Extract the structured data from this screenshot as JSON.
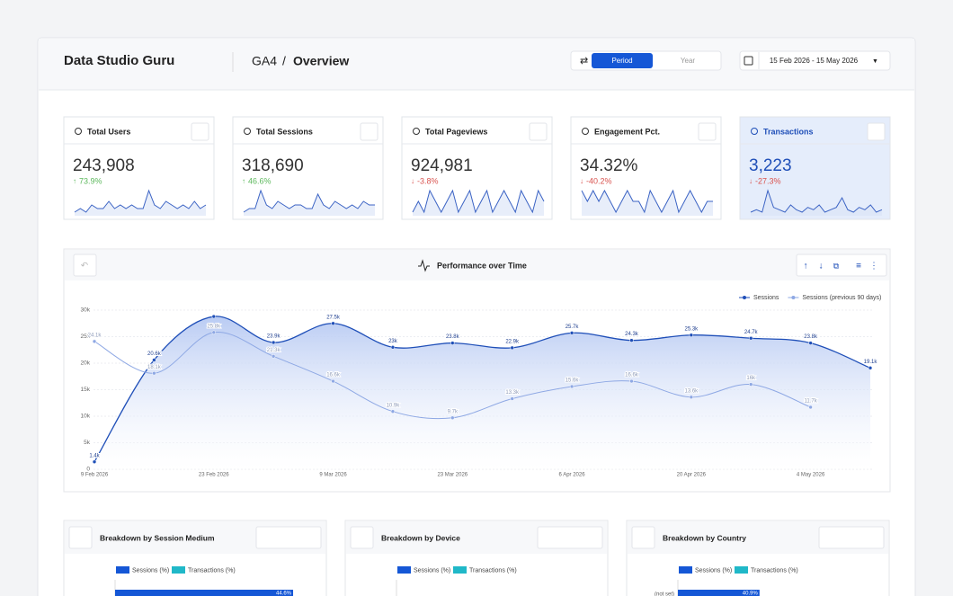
{
  "header": {
    "brand": "Data Studio Guru",
    "breadcrumb": [
      "GA4",
      "/",
      "Overview"
    ],
    "toggle": [
      "Period",
      "Year"
    ],
    "date_range": "15 Feb 2026 - 15 May 2026"
  },
  "kpis": [
    {
      "title": "Total Users",
      "value": "243,908",
      "change": "73.9%",
      "trend": [
        3,
        4,
        3,
        5,
        4,
        4,
        6,
        4,
        5,
        4,
        5,
        4,
        4,
        9,
        5,
        4,
        6,
        5,
        4,
        5,
        4,
        6,
        4,
        5
      ]
    },
    {
      "title": "Total Sessions",
      "value": "318,690",
      "change": "46.6%",
      "trend": [
        3,
        4,
        4,
        9,
        5,
        4,
        6,
        5,
        4,
        5,
        5,
        4,
        4,
        8,
        5,
        4,
        6,
        5,
        4,
        5,
        4,
        6,
        5,
        5
      ]
    },
    {
      "title": "Total Pageviews",
      "value": "924,981",
      "change": "-3.8%",
      "trend": [
        4,
        5,
        4,
        6,
        5,
        4,
        5,
        6,
        4,
        5,
        6,
        4,
        5,
        6,
        4,
        5,
        6,
        5,
        4,
        6,
        5,
        4,
        6,
        5
      ]
    },
    {
      "title": "Engagement Pct.",
      "value": "34.32%",
      "change": "-40.2%",
      "trend": [
        6,
        5,
        6,
        5,
        6,
        5,
        4,
        5,
        6,
        5,
        5,
        4,
        6,
        5,
        4,
        5,
        6,
        4,
        5,
        6,
        5,
        4,
        5,
        5
      ]
    },
    {
      "title": "Transactions",
      "value": "3,223",
      "change": "-27.3%",
      "trend": [
        3,
        4,
        3,
        12,
        5,
        4,
        3,
        6,
        4,
        3,
        5,
        4,
        6,
        3,
        4,
        5,
        9,
        4,
        3,
        5,
        4,
        6,
        3,
        4
      ]
    }
  ],
  "chart": {
    "type": "line",
    "title": "Performance over Time",
    "categories": [
      "9 Feb 2026",
      null,
      "23 Feb 2026",
      null,
      "9 Mar 2026",
      null,
      "23 Mar 2026",
      null,
      "6 Apr 2026",
      null,
      "20 Apr 2026",
      null,
      "4 May 2026",
      null
    ],
    "series": [
      {
        "name": "Sessions",
        "color": "#1f4fb8",
        "values": [
          1400,
          20600,
          28800,
          23900,
          27500,
          23000,
          23800,
          22900,
          25700,
          24300,
          25300,
          24700,
          23800,
          19100
        ],
        "value_labels": [
          "1.4k",
          "20.6k",
          null,
          "23.9k",
          "27.5k",
          "23k",
          "23.8k",
          "22.9k",
          "25.7k",
          "24.3k",
          "25.3k",
          "24.7k",
          "23.8k",
          "19.1k"
        ]
      },
      {
        "name": "Sessions (previous 90 days)",
        "color": "#8ea8e4",
        "values": [
          24100,
          18100,
          25800,
          21300,
          16600,
          10900,
          9700,
          13300,
          15600,
          16600,
          13600,
          16000,
          11700,
          null
        ],
        "value_labels": [
          "24.1k",
          "18.1k",
          "25.8k",
          "21.3k",
          "16.6k",
          "10.9k",
          "9.7k",
          "13.3k",
          "15.6k",
          "16.6k",
          "13.6k",
          "16k",
          "11.7k",
          null
        ]
      }
    ],
    "ylim": [
      0,
      30000
    ],
    "yticks": [
      0,
      {
        "value": 5000,
        "label": "5k"
      },
      {
        "value": 10000,
        "label": "10k"
      },
      {
        "value": 15000,
        "label": "15k"
      },
      {
        "value": 20000,
        "label": "20k"
      },
      {
        "value": 25000,
        "label": "25k"
      },
      {
        "value": 30000,
        "label": "30k"
      }
    ],
    "grid": true
  },
  "panels": [
    {
      "title": "Breakdown by Session Medium",
      "legend": [
        "Sessions (%)",
        "Transactions (%)"
      ],
      "values": [
        44.6
      ],
      "value_labels": [
        "44.6%"
      ],
      "xlim": [
        0,
        50
      ]
    },
    {
      "title": "Breakdown by Device",
      "legend": [
        "Sessions (%)",
        "Transactions (%)"
      ]
    },
    {
      "title": "Breakdown by Country",
      "legend": [
        "Sessions (%)",
        "Transactions (%)"
      ],
      "categories": [
        "(not set)"
      ],
      "values": [
        40.9
      ],
      "value_labels": [
        "40.9%"
      ],
      "xlim": [
        0,
        100
      ]
    }
  ]
}
